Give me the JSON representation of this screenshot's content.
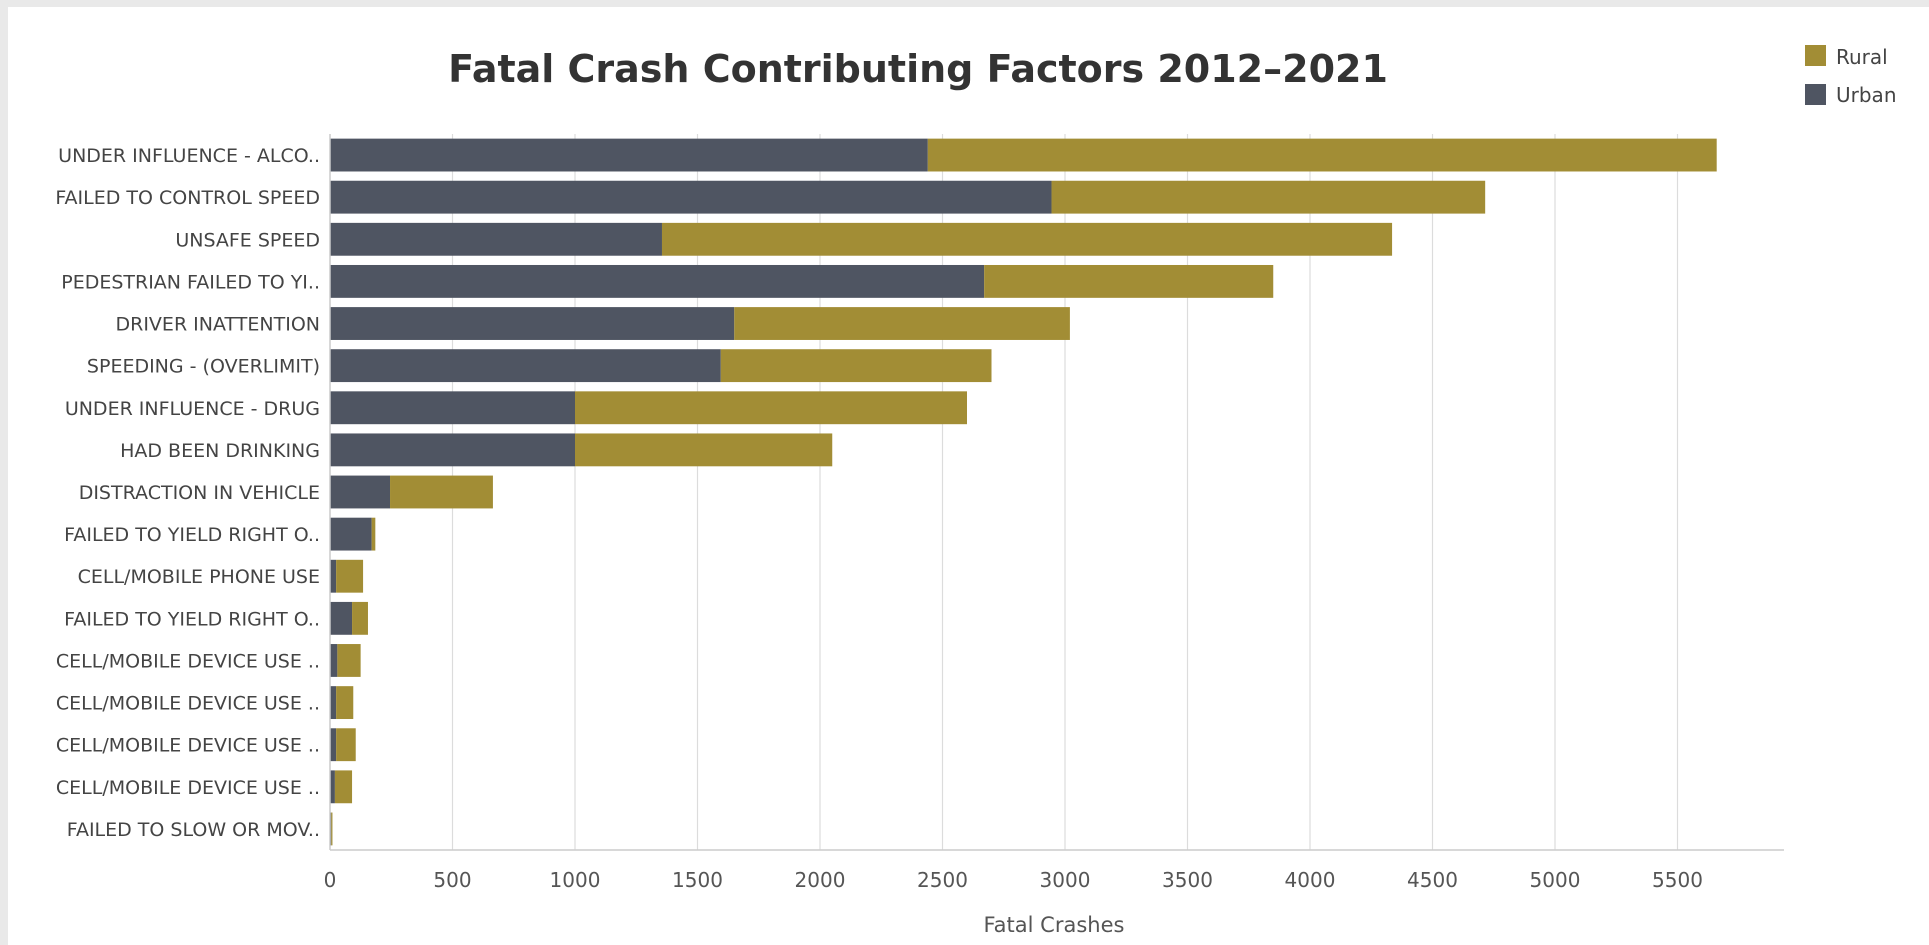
{
  "chart_data": {
    "type": "bar",
    "orientation": "horizontal",
    "stacked": true,
    "title": "Fatal Crash Contributing Factors  2012–2021",
    "xlabel": "Fatal Crashes",
    "ylabel": "",
    "xlim": [
      0,
      5800
    ],
    "xticks": [
      0,
      500,
      1000,
      1500,
      2000,
      2500,
      3000,
      3500,
      4000,
      4500,
      5000,
      5500
    ],
    "xtick_labels": [
      "0",
      "500",
      "1000",
      "1500",
      "2000",
      "2500",
      "3000",
      "3500",
      "4000",
      "4500",
      "5000",
      "5500"
    ],
    "grid": "vertical",
    "legend_position": "top-right",
    "categories": [
      "UNDER INFLUENCE - ALCO..",
      "FAILED TO CONTROL SPEED",
      "UNSAFE SPEED",
      "PEDESTRIAN FAILED TO YI..",
      "DRIVER INATTENTION",
      "SPEEDING - (OVERLIMIT)",
      "UNDER INFLUENCE - DRUG",
      "HAD BEEN DRINKING",
      "DISTRACTION IN VEHICLE",
      "FAILED TO YIELD RIGHT O..",
      "CELL/MOBILE  PHONE USE",
      "FAILED TO YIELD RIGHT O..",
      "CELL/MOBILE DEVICE USE ..",
      "CELL/MOBILE DEVICE USE ..",
      "CELL/MOBILE DEVICE USE ..",
      "CELL/MOBILE DEVICE USE ..",
      "FAILED TO SLOW OR MOV.."
    ],
    "series": [
      {
        "name": "Urban",
        "color": "#4f5562",
        "values": [
          2440,
          2945,
          1355,
          2670,
          1650,
          1595,
          1000,
          1000,
          245,
          170,
          25,
          90,
          30,
          25,
          25,
          20,
          5
        ]
      },
      {
        "name": "Rural",
        "color": "#a28d35",
        "values": [
          3220,
          1770,
          2980,
          1180,
          1370,
          1105,
          1600,
          1050,
          420,
          15,
          110,
          65,
          95,
          70,
          80,
          70,
          5
        ]
      }
    ],
    "legend": [
      {
        "name": "Rural",
        "color": "#a28d35"
      },
      {
        "name": "Urban",
        "color": "#4f5562"
      }
    ]
  }
}
